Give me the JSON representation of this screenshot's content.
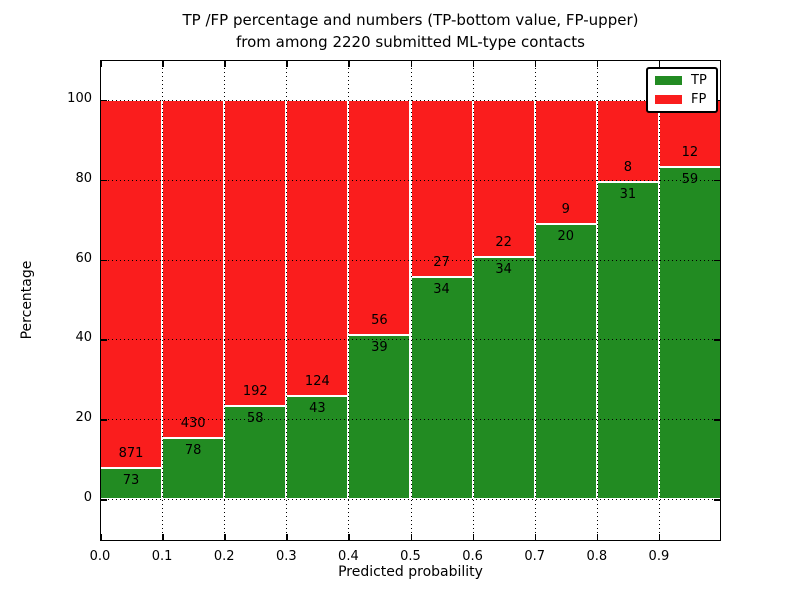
{
  "title": {
    "line1": "TP /FP percentage and numbers (TP-bottom value, FP-upper)",
    "line2": "from among 2220 submitted ML-type contacts"
  },
  "chart_data": {
    "type": "bar",
    "stacked": true,
    "normalized_to_percent": true,
    "title": "TP /FP percentage and numbers (TP-bottom value, FP-upper)\nfrom among 2220 submitted ML-type contacts",
    "xlabel": "Predicted probability",
    "ylabel": "Percentage",
    "total_contacts": 2220,
    "bin_edges": [
      0.0,
      0.1,
      0.2,
      0.3,
      0.4,
      0.5,
      0.6,
      0.7,
      0.8,
      0.9,
      1.0
    ],
    "series": [
      {
        "name": "TP",
        "color": "#228b22",
        "counts": [
          73,
          78,
          58,
          43,
          39,
          34,
          34,
          20,
          31,
          59
        ]
      },
      {
        "name": "FP",
        "color": "#fa1d1d",
        "counts": [
          871,
          430,
          192,
          124,
          56,
          27,
          22,
          9,
          8,
          12
        ]
      }
    ],
    "tp_percent": [
      7.73,
      15.35,
      23.2,
      25.75,
      41.05,
      55.74,
      60.71,
      68.97,
      79.49,
      83.1
    ],
    "xticks": [
      "0.0",
      "0.1",
      "0.2",
      "0.3",
      "0.4",
      "0.5",
      "0.6",
      "0.7",
      "0.8",
      "0.9"
    ],
    "xtick_values": [
      0.0,
      0.1,
      0.2,
      0.3,
      0.4,
      0.5,
      0.6,
      0.7,
      0.8,
      0.9
    ],
    "yticks": [
      0,
      20,
      40,
      60,
      80,
      100
    ],
    "xlim": [
      0.0,
      1.0
    ],
    "ylim": [
      -10.5,
      110
    ],
    "grid": {
      "style": "dotted",
      "color": "#000000"
    },
    "bar_edge_color": "#ffffff",
    "legend": {
      "position": "upper right",
      "entries": [
        "TP",
        "FP"
      ]
    }
  }
}
